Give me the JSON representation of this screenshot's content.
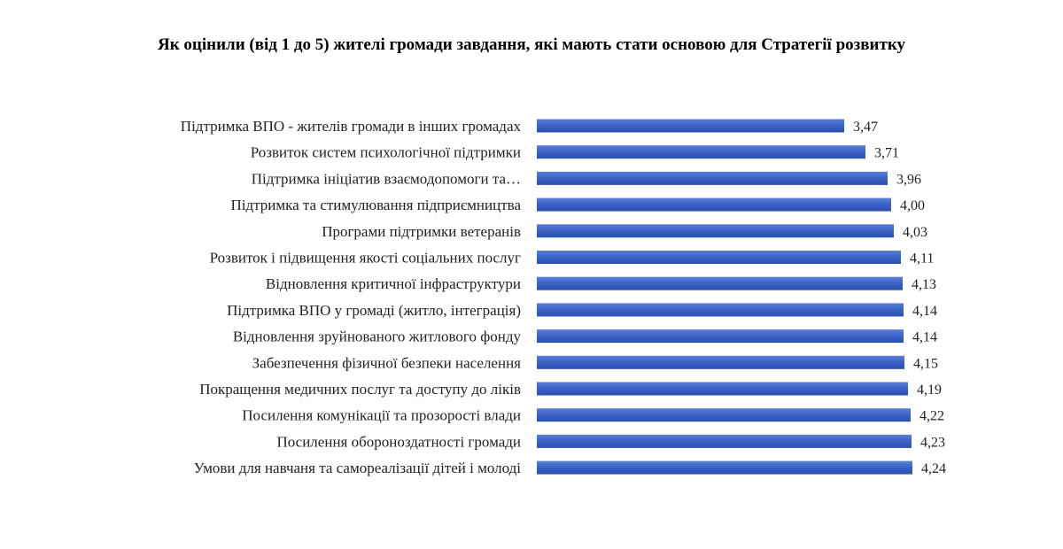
{
  "chart_data": {
    "type": "bar",
    "orientation": "horizontal",
    "title": "Як оцінили (від 1 до 5) жителі громади завдання, які мають стати основою для Стратегії розвитку",
    "categories": [
      "Підтримка ВПО  - жителів громади в інших громадах",
      "Розвиток систем психологічної підтримки",
      "Підтримка ініціатив взаємодопомоги та…",
      "Підтримка та стимулювання підприємництва",
      "Програми підтримки ветеранів",
      "Розвиток і підвищення якості соціальних послуг",
      "Відновлення критичної інфраструктури",
      "Підтримка ВПО  у громаді (житло, інтеграція)",
      "Відновлення зруйнованого житлового фонду",
      "Забезпечення фізичної безпеки населення",
      "Покращення медичних послуг та доступу до ліків",
      "Посилення  комунікації та прозорості влади",
      "Посилення  обороноздатності громади",
      "Умови для навчаня та самореалізації дітей і молоді"
    ],
    "values": [
      3.47,
      3.71,
      3.96,
      4.0,
      4.03,
      4.11,
      4.13,
      4.14,
      4.14,
      4.15,
      4.19,
      4.22,
      4.23,
      4.24
    ],
    "value_labels": [
      "3,47",
      "3,71",
      "3,96",
      "4,00",
      "4,03",
      "4,11",
      "4,13",
      "4,14",
      "4,14",
      "4,15",
      "4,19",
      "4,22",
      "4,23",
      "4,24"
    ],
    "xlim": [
      0,
      4.24
    ],
    "grid": false,
    "legend": "none",
    "bar_color": "#3f66c9"
  }
}
